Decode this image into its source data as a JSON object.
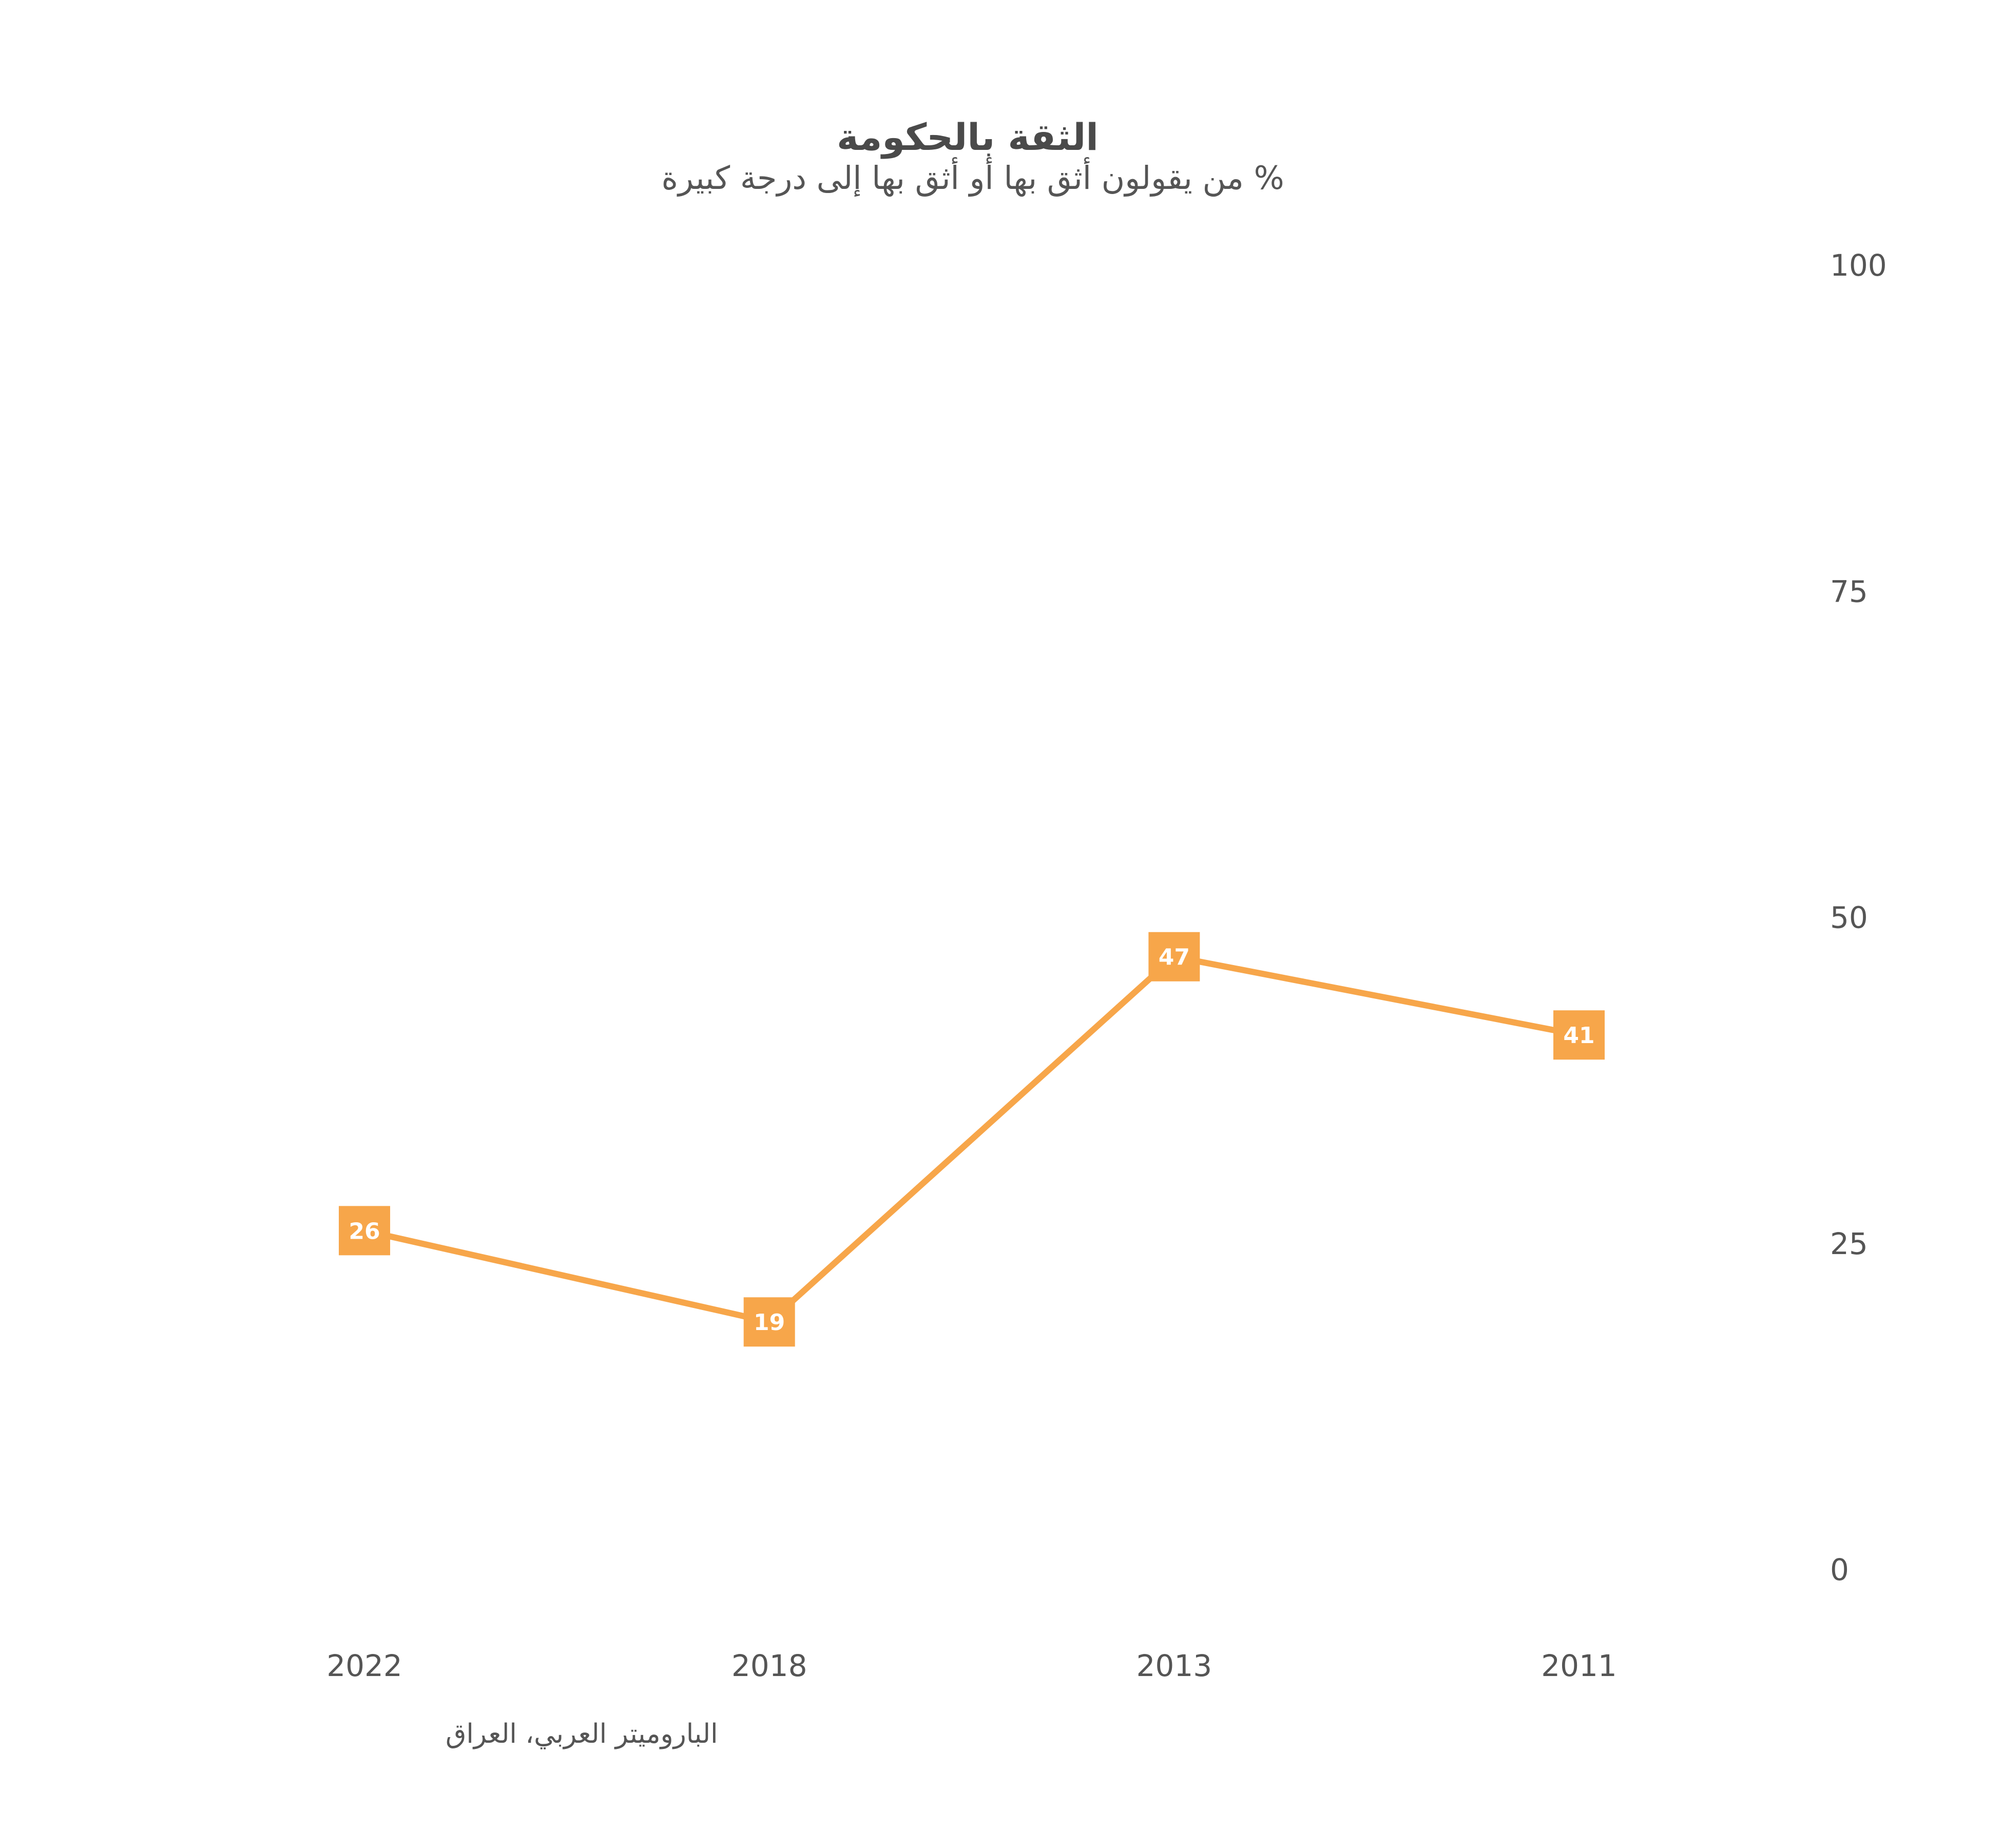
{
  "chart_data": {
    "type": "line",
    "title": "الثقة بالحكومة",
    "subtitle": "% من يقولون أثق بها أو أثق بها إلى درجة كبيرة",
    "source": "الباروميتر العربي، العراق",
    "categories": [
      "2022",
      "2018",
      "2013",
      "2011"
    ],
    "series": [
      {
        "values": [
          26,
          19,
          47,
          41
        ]
      }
    ],
    "ylim": [
      0,
      100
    ],
    "yticks": [
      0,
      25,
      50,
      75,
      100
    ],
    "grid": false,
    "color": "#F7A64A"
  }
}
